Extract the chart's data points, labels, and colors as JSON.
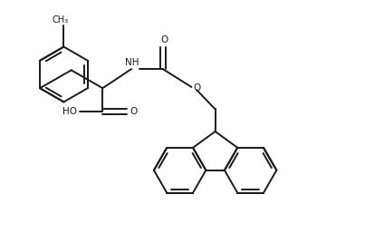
{
  "background_color": "#ffffff",
  "line_color": "#1a1a1a",
  "line_width": 1.4,
  "figsize": [
    4.24,
    2.68
  ],
  "dpi": 100,
  "xlim": [
    0,
    10
  ],
  "ylim": [
    0,
    6.3
  ]
}
